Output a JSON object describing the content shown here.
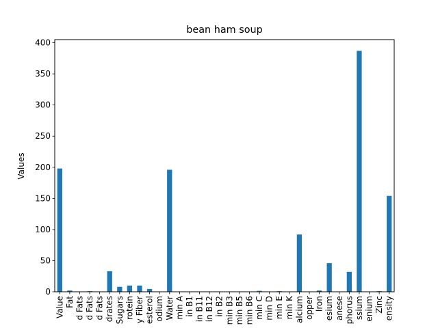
{
  "chart_data": {
    "type": "bar",
    "title": "bean ham soup",
    "xlabel": "",
    "ylabel": "Values",
    "ylim": [
      0,
      405
    ],
    "yticks": [
      0,
      50,
      100,
      150,
      200,
      250,
      300,
      350,
      400
    ],
    "grid": false,
    "legend": "none",
    "bar_color": "#1f77b4",
    "categories": [
      "Value",
      "Fat",
      "d Fats",
      "d Fats",
      "d Fats",
      "drates",
      "Sugars",
      "rotein",
      "y Fiber",
      "esterol",
      "odium",
      "Water",
      "min A",
      "in B1",
      "in B11",
      "in B12",
      "in B2",
      "min B3",
      "min B5",
      "min B6",
      "min C",
      "min D",
      "min E",
      "min K",
      "alcium",
      "opper",
      "Iron",
      "esium",
      "anese",
      "phorus",
      "ssium",
      "enium",
      "Zinc",
      "ensity"
    ],
    "values": [
      198,
      2,
      0.5,
      1,
      0.3,
      33,
      8,
      10,
      10,
      4.5,
      0,
      196,
      0,
      0,
      0,
      0,
      0,
      0.5,
      0,
      0,
      1.5,
      0,
      1,
      0,
      92,
      0,
      2,
      46,
      0,
      32,
      387,
      0,
      1,
      154
    ]
  }
}
